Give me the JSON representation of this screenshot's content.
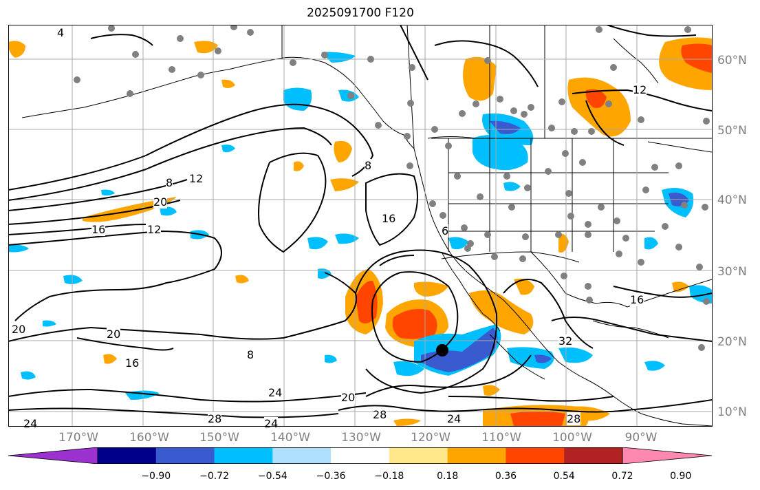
{
  "title": "2025091700 F120",
  "lon_labels": [
    "170°W",
    "160°W",
    "150°W",
    "140°W",
    "130°W",
    "120°W",
    "110°W",
    "100°W",
    "90°W"
  ],
  "lat_labels": [
    "60°N",
    "50°N",
    "40°N",
    "30°N",
    "20°N",
    "10°N"
  ],
  "contour_labels": [
    "4",
    "8",
    "12",
    "20",
    "16",
    "12",
    "8",
    "16",
    "6",
    "20",
    "8",
    "16",
    "20",
    "24",
    "28",
    "24",
    "20",
    "28",
    "24",
    "32",
    "28",
    "12",
    "16",
    "24"
  ],
  "colorbar": {
    "ticks": [
      "−0.90",
      "−0.72",
      "−0.54",
      "−0.36",
      "−0.18",
      "0.18",
      "0.36",
      "0.54",
      "0.72",
      "0.90"
    ],
    "colors": [
      "#9b32d0",
      "#00008b",
      "#3a5bd0",
      "#00bfff",
      "#b0e0ff",
      "#ffffff",
      "#ffe88a",
      "#ffa500",
      "#ff4500",
      "#b22222",
      "#ff88b0"
    ]
  },
  "grid_color": "#a9a9a9",
  "label_color": "#7f7f7f"
}
